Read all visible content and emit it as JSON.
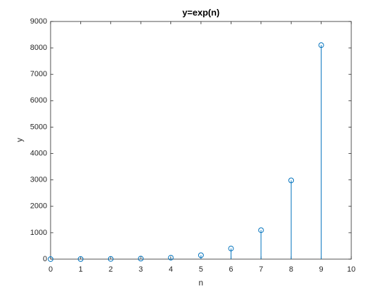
{
  "chart_data": {
    "type": "stem",
    "title": "y=exp(n)",
    "x_label": "n",
    "y_label": "y",
    "x": [
      0,
      1,
      2,
      3,
      4,
      5,
      6,
      7,
      8,
      9
    ],
    "values": [
      1,
      3,
      7,
      20,
      55,
      148,
      403,
      1097,
      2981,
      8103
    ],
    "color": "#0072bd",
    "xlim": [
      0,
      10
    ],
    "xticks": [
      0,
      1,
      2,
      3,
      4,
      5,
      6,
      7,
      8,
      9,
      10
    ],
    "ylim": [
      0,
      9000
    ],
    "yticks": [
      0,
      1000,
      2000,
      3000,
      4000,
      5000,
      6000,
      7000,
      8000,
      9000
    ],
    "grid": false
  }
}
